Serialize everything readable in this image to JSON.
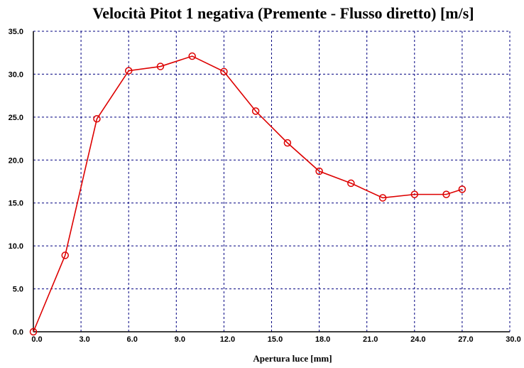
{
  "chart_data": {
    "type": "line",
    "title": "Velocità Pitot 1 negativa (Premente - Flusso diretto) [m/s]",
    "xlabel": "Apertura luce [mm]",
    "ylabel": "",
    "xlim": [
      0,
      30
    ],
    "ylim": [
      0,
      35
    ],
    "x_ticks": [
      "0.0",
      "3.0",
      "6.0",
      "9.0",
      "12.0",
      "15.0",
      "18.0",
      "21.0",
      "24.0",
      "27.0",
      "30.0"
    ],
    "y_ticks": [
      "0.0",
      "5.0",
      "10.0",
      "15.0",
      "20.0",
      "25.0",
      "30.0",
      "35.0"
    ],
    "grid": true,
    "series": [
      {
        "color": "#dd0000",
        "marker": "circle",
        "x": [
          0,
          2,
          4,
          6,
          8,
          10,
          12,
          14,
          16,
          18,
          20,
          22,
          24,
          26,
          27
        ],
        "y": [
          0,
          8.9,
          24.8,
          30.4,
          30.9,
          32.1,
          30.3,
          25.7,
          22.0,
          18.7,
          17.3,
          15.6,
          16.0,
          16.0,
          16.6
        ]
      }
    ]
  }
}
